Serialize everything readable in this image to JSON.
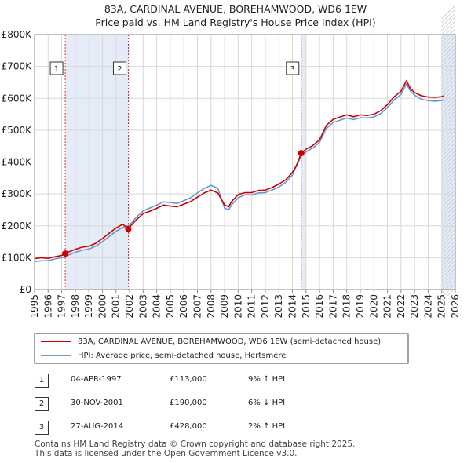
{
  "title_line1": "83A, CARDINAL AVENUE, BOREHAMWOOD, WD6 1EW",
  "title_line2": "Price paid vs. HM Land Registry's House Price Index (HPI)",
  "chart_data": {
    "type": "line",
    "title": "83A, CARDINAL AVENUE, BOREHAMWOOD, WD6 1EW - Price paid vs. HM Land Registry's House Price Index (HPI)",
    "xlabel": "",
    "ylabel": "",
    "xlim": [
      1995,
      2026
    ],
    "ylim": [
      0,
      800000
    ],
    "y_ticks": [
      0,
      100000,
      200000,
      300000,
      400000,
      500000,
      600000,
      700000,
      800000
    ],
    "y_tick_labels": [
      "£0",
      "£100K",
      "£200K",
      "£300K",
      "£400K",
      "£500K",
      "£600K",
      "£700K",
      "£800K"
    ],
    "x_ticks": [
      "1995",
      "1996",
      "1997",
      "1998",
      "1999",
      "2000",
      "2001",
      "2002",
      "2003",
      "2004",
      "2005",
      "2006",
      "2007",
      "2008",
      "2009",
      "2010",
      "2011",
      "2012",
      "2013",
      "2014",
      "2015",
      "2016",
      "2017",
      "2018",
      "2019",
      "2020",
      "2021",
      "2022",
      "2023",
      "2024",
      "2025",
      "2026"
    ],
    "grid": true,
    "legend_position": "bottom",
    "series": [
      {
        "name": "83A, CARDINAL AVENUE, BOREHAMWOOD, WD6 1EW (semi-detached house)",
        "color": "#cc0000",
        "x": [
          1995.0,
          1995.5,
          1996.0,
          1996.5,
          1997.0,
          1997.26,
          1997.5,
          1998.0,
          1998.5,
          1999.0,
          1999.5,
          2000.0,
          2000.5,
          2001.0,
          2001.5,
          2001.91,
          2002.0,
          2002.5,
          2003.0,
          2003.5,
          2004.0,
          2004.5,
          2005.0,
          2005.5,
          2006.0,
          2006.5,
          2007.0,
          2007.5,
          2008.0,
          2008.5,
          2009.0,
          2009.3,
          2009.5,
          2010.0,
          2010.5,
          2011.0,
          2011.5,
          2012.0,
          2012.5,
          2013.0,
          2013.5,
          2014.0,
          2014.3,
          2014.65,
          2015.0,
          2015.5,
          2016.0,
          2016.5,
          2017.0,
          2017.5,
          2018.0,
          2018.5,
          2019.0,
          2019.5,
          2020.0,
          2020.5,
          2021.0,
          2021.5,
          2022.0,
          2022.4,
          2022.7,
          2023.0,
          2023.5,
          2024.0,
          2024.5,
          2025.0,
          2025.15
        ],
        "values": [
          97000,
          100000,
          98000,
          103000,
          107000,
          113000,
          118000,
          126000,
          133000,
          136000,
          145000,
          160000,
          177000,
          193000,
          205000,
          190000,
          196000,
          219000,
          238000,
          246000,
          255000,
          265000,
          262000,
          260000,
          268000,
          276000,
          290000,
          303000,
          312000,
          303000,
          265000,
          260000,
          275000,
          298000,
          304000,
          304000,
          311000,
          312000,
          320000,
          331000,
          344000,
          368000,
          390000,
          428000,
          440000,
          452000,
          470000,
          515000,
          534000,
          541000,
          548000,
          542000,
          548000,
          546000,
          550000,
          561000,
          580000,
          605000,
          622000,
          655000,
          630000,
          618000,
          608000,
          604000,
          603000,
          605000,
          608000
        ]
      },
      {
        "name": "HPI: Average price, semi-detached house, Hertsmere",
        "color": "#6699cc",
        "x": [
          1995.0,
          1995.5,
          1996.0,
          1996.5,
          1997.0,
          1997.5,
          1998.0,
          1998.5,
          1999.0,
          1999.5,
          2000.0,
          2000.5,
          2001.0,
          2001.5,
          2002.0,
          2002.5,
          2003.0,
          2003.5,
          2004.0,
          2004.5,
          2005.0,
          2005.5,
          2006.0,
          2006.5,
          2007.0,
          2007.5,
          2008.0,
          2008.5,
          2009.0,
          2009.3,
          2009.5,
          2010.0,
          2010.5,
          2011.0,
          2011.5,
          2012.0,
          2012.5,
          2013.0,
          2013.5,
          2014.0,
          2014.65,
          2015.0,
          2015.5,
          2016.0,
          2016.5,
          2017.0,
          2017.5,
          2018.0,
          2018.5,
          2019.0,
          2019.5,
          2020.0,
          2020.5,
          2021.0,
          2021.5,
          2022.0,
          2022.4,
          2022.7,
          2023.0,
          2023.5,
          2024.0,
          2024.5,
          2025.0,
          2025.15
        ],
        "values": [
          88000,
          90000,
          91000,
          96000,
          100000,
          108000,
          117000,
          123000,
          127000,
          136000,
          150000,
          167000,
          183000,
          195000,
          202000,
          227000,
          247000,
          256000,
          265000,
          275000,
          273000,
          270000,
          279000,
          288000,
          303000,
          317000,
          327000,
          318000,
          255000,
          250000,
          265000,
          288000,
          297000,
          297000,
          303000,
          304000,
          312000,
          322000,
          336000,
          360000,
          420000,
          432000,
          444000,
          462000,
          505000,
          524000,
          531000,
          538000,
          533000,
          539000,
          538000,
          541000,
          552000,
          571000,
          595000,
          612000,
          645000,
          622000,
          610000,
          597000,
          593000,
          591000,
          593000,
          595000
        ]
      }
    ],
    "annotations": [
      {
        "label": "1",
        "x": 1997.26,
        "value": 113000
      },
      {
        "label": "2",
        "x": 2001.91,
        "value": 190000
      },
      {
        "label": "3",
        "x": 2014.65,
        "value": 428000
      }
    ],
    "shaded_ranges": [
      [
        1997.26,
        2001.91
      ],
      [
        2014.65,
        2015.0
      ],
      [
        2025.0,
        2026.0
      ]
    ]
  },
  "legend": [
    {
      "label": "83A, CARDINAL AVENUE, BOREHAMWOOD, WD6 1EW (semi-detached house)",
      "color": "#cc0000"
    },
    {
      "label": "HPI: Average price, semi-detached house, Hertsmere",
      "color": "#6699cc"
    }
  ],
  "sales": [
    {
      "num": "1",
      "date": "04-APR-1997",
      "price": "£113,000",
      "hpi": "9% ↑ HPI"
    },
    {
      "num": "2",
      "date": "30-NOV-2001",
      "price": "£190,000",
      "hpi": "6% ↓ HPI"
    },
    {
      "num": "3",
      "date": "27-AUG-2014",
      "price": "£428,000",
      "hpi": "2% ↑ HPI"
    }
  ],
  "footer_line1": "Contains HM Land Registry data © Crown copyright and database right 2025.",
  "footer_line2": "This data is licensed under the Open Government Licence v3.0."
}
